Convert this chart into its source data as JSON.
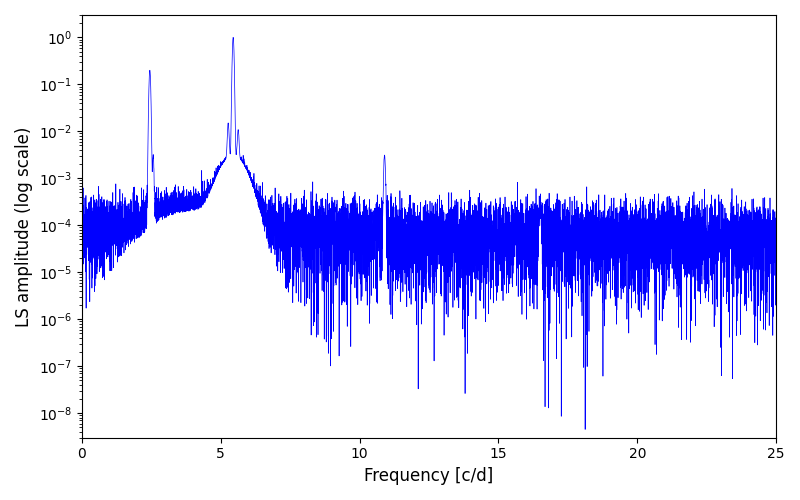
{
  "xlabel": "Frequency [c/d]",
  "ylabel": "LS amplitude (log scale)",
  "xlim": [
    0,
    25
  ],
  "ylim": [
    3e-09,
    3.0
  ],
  "line_color": "#0000ff",
  "line_width": 0.5,
  "background_color": "#ffffff",
  "xticks": [
    0,
    5,
    10,
    15,
    20,
    25
  ],
  "num_points": 8000,
  "freq_max": 25.0,
  "peak1_freq": 2.45,
  "peak1_amp": 0.2,
  "peak2_freq": 5.45,
  "peak2_amp": 1.0,
  "peak3_freq": 10.9,
  "peak3_amp": 0.003,
  "peak4_freq": 16.5,
  "peak4_amp": 0.0002,
  "noise_floor_low": 0.00012,
  "noise_floor_high": 5e-05,
  "seed": 137
}
